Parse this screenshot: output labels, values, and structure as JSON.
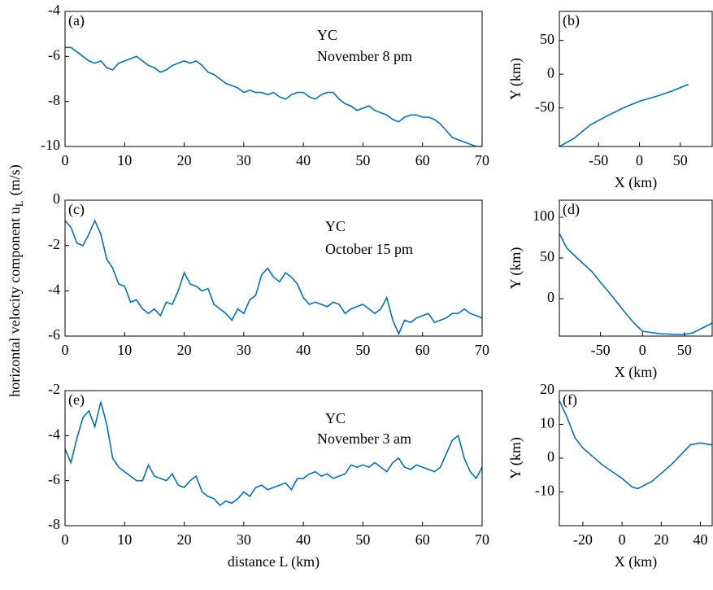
{
  "chart_data": [
    {
      "type": "line",
      "panel_label": "(a)",
      "annotations": [
        "YC",
        "November 8 pm"
      ],
      "x": [
        0,
        1,
        2,
        3,
        4,
        5,
        6,
        7,
        8,
        9,
        10,
        11,
        12,
        13,
        14,
        15,
        16,
        17,
        18,
        19,
        20,
        21,
        22,
        23,
        24,
        25,
        26,
        27,
        28,
        29,
        30,
        31,
        32,
        33,
        34,
        35,
        36,
        37,
        38,
        39,
        40,
        41,
        42,
        43,
        44,
        45,
        46,
        47,
        48,
        49,
        50,
        51,
        52,
        53,
        54,
        55,
        56,
        57,
        58,
        59,
        60,
        61,
        62,
        63,
        64,
        65,
        66,
        67,
        68,
        69,
        70
      ],
      "series": [
        {
          "color": "#0072bd",
          "values": [
            -5.6,
            -5.6,
            -5.8,
            -6.0,
            -6.2,
            -6.3,
            -6.2,
            -6.5,
            -6.6,
            -6.3,
            -6.2,
            -6.1,
            -6.0,
            -6.2,
            -6.4,
            -6.5,
            -6.7,
            -6.6,
            -6.4,
            -6.3,
            -6.2,
            -6.3,
            -6.2,
            -6.4,
            -6.7,
            -6.8,
            -7.0,
            -7.2,
            -7.3,
            -7.4,
            -7.6,
            -7.5,
            -7.6,
            -7.6,
            -7.7,
            -7.6,
            -7.8,
            -7.9,
            -7.7,
            -7.6,
            -7.6,
            -7.8,
            -7.9,
            -7.7,
            -7.6,
            -7.6,
            -7.9,
            -8.1,
            -8.2,
            -8.4,
            -8.3,
            -8.2,
            -8.4,
            -8.5,
            -8.6,
            -8.8,
            -8.9,
            -8.7,
            -8.6,
            -8.6,
            -8.7,
            -8.7,
            -8.8,
            -9.0,
            -9.3,
            -9.6,
            -9.7,
            -9.8,
            -9.9,
            -10.0,
            -10.0
          ]
        }
      ],
      "xlim": [
        0,
        70
      ],
      "xticks": [
        0,
        10,
        20,
        30,
        40,
        50,
        60,
        70
      ],
      "ylim": [
        -10,
        -4
      ],
      "yticks": [
        -10,
        -8,
        -6,
        -4
      ]
    },
    {
      "type": "line",
      "panel_label": "(b)",
      "xlabel": "X (km)",
      "ylabel": "Y (km)",
      "x": [
        -98,
        -80,
        -60,
        -40,
        -20,
        0,
        20,
        40,
        60
      ],
      "series": [
        {
          "color": "#0072bd",
          "values": [
            -107,
            -95,
            -75,
            -62,
            -50,
            -40,
            -33,
            -25,
            -15
          ]
        }
      ],
      "xlim": [
        -98,
        89
      ],
      "xticks": [
        -50,
        0,
        50
      ],
      "ylim": [
        -107,
        93
      ],
      "yticks": [
        -50,
        0,
        50
      ]
    },
    {
      "type": "line",
      "panel_label": "(c)",
      "annotations": [
        "YC",
        "October 15 pm"
      ],
      "ylabel": "horizontal velocity component u",
      "ylabel_subscript": "L",
      "ylabel_unit": "(m/s)",
      "x": [
        0,
        1,
        2,
        3,
        4,
        5,
        6,
        7,
        8,
        9,
        10,
        11,
        12,
        13,
        14,
        15,
        16,
        17,
        18,
        19,
        20,
        21,
        22,
        23,
        24,
        25,
        26,
        27,
        28,
        29,
        30,
        31,
        32,
        33,
        34,
        35,
        36,
        37,
        38,
        39,
        40,
        41,
        42,
        43,
        44,
        45,
        46,
        47,
        48,
        49,
        50,
        51,
        52,
        53,
        54,
        55,
        56,
        57,
        58,
        59,
        60,
        61,
        62,
        63,
        64,
        65,
        66,
        67,
        68,
        69,
        70
      ],
      "series": [
        {
          "color": "#0072bd",
          "values": [
            -0.9,
            -1.2,
            -1.9,
            -2.0,
            -1.5,
            -0.9,
            -1.5,
            -2.6,
            -3.0,
            -3.7,
            -3.8,
            -4.5,
            -4.4,
            -4.8,
            -5.0,
            -4.8,
            -5.1,
            -4.5,
            -4.6,
            -4.0,
            -3.2,
            -3.7,
            -3.8,
            -4.0,
            -3.9,
            -4.6,
            -4.8,
            -5.0,
            -5.3,
            -4.8,
            -5.0,
            -4.4,
            -4.2,
            -3.3,
            -3.0,
            -3.4,
            -3.6,
            -3.2,
            -3.4,
            -3.7,
            -4.3,
            -4.6,
            -4.5,
            -4.6,
            -4.7,
            -4.5,
            -4.6,
            -5.0,
            -4.8,
            -4.7,
            -4.6,
            -4.8,
            -5.0,
            -4.8,
            -4.3,
            -5.3,
            -5.9,
            -5.3,
            -5.4,
            -5.2,
            -5.1,
            -5.0,
            -5.4,
            -5.3,
            -5.2,
            -5.0,
            -5.0,
            -4.8,
            -5.0,
            -5.1,
            -5.2
          ]
        }
      ],
      "xlim": [
        0,
        70
      ],
      "xticks": [
        0,
        10,
        20,
        30,
        40,
        50,
        60,
        70
      ],
      "ylim": [
        -6,
        0
      ],
      "yticks": [
        -6,
        -4,
        -2,
        0
      ]
    },
    {
      "type": "line",
      "panel_label": "(d)",
      "xlabel": "X (km)",
      "ylabel": "Y (km)",
      "x": [
        -99,
        -90,
        -80,
        -60,
        -50,
        -40,
        -20,
        -10,
        0,
        20,
        40,
        50,
        60,
        83
      ],
      "series": [
        {
          "color": "#0072bd",
          "values": [
            80,
            62,
            52,
            33,
            20,
            8,
            -18,
            -30,
            -40,
            -43,
            -44,
            -44,
            -42,
            -30
          ]
        }
      ],
      "xlim": [
        -99,
        83
      ],
      "xticks": [
        -50,
        0,
        50
      ],
      "ylim": [
        -46,
        121
      ],
      "yticks": [
        0,
        50,
        100
      ]
    },
    {
      "type": "line",
      "panel_label": "(e)",
      "annotations": [
        "YC",
        "November 3 am"
      ],
      "xlabel": "distance L (km)",
      "x": [
        0,
        1,
        2,
        3,
        4,
        5,
        6,
        7,
        8,
        9,
        10,
        11,
        12,
        13,
        14,
        15,
        16,
        17,
        18,
        19,
        20,
        21,
        22,
        23,
        24,
        25,
        26,
        27,
        28,
        29,
        30,
        31,
        32,
        33,
        34,
        35,
        36,
        37,
        38,
        39,
        40,
        41,
        42,
        43,
        44,
        45,
        46,
        47,
        48,
        49,
        50,
        51,
        52,
        53,
        54,
        55,
        56,
        57,
        58,
        59,
        60,
        61,
        62,
        63,
        64,
        65,
        66,
        67,
        68,
        69,
        70
      ],
      "series": [
        {
          "color": "#0072bd",
          "values": [
            -4.6,
            -5.2,
            -4.1,
            -3.2,
            -2.9,
            -3.6,
            -2.5,
            -3.5,
            -5.0,
            -5.4,
            -5.6,
            -5.8,
            -6.0,
            -6.0,
            -5.3,
            -5.8,
            -5.9,
            -6.0,
            -5.7,
            -6.2,
            -6.3,
            -6.0,
            -5.8,
            -6.5,
            -6.7,
            -6.8,
            -7.1,
            -6.9,
            -7.0,
            -6.8,
            -6.5,
            -6.7,
            -6.3,
            -6.2,
            -6.4,
            -6.3,
            -6.2,
            -6.1,
            -6.4,
            -5.9,
            -5.9,
            -5.7,
            -5.6,
            -5.8,
            -5.7,
            -5.9,
            -5.8,
            -5.7,
            -5.3,
            -5.4,
            -5.3,
            -5.4,
            -5.2,
            -5.4,
            -5.6,
            -5.2,
            -5.0,
            -5.4,
            -5.5,
            -5.3,
            -5.4,
            -5.5,
            -5.6,
            -5.4,
            -4.8,
            -4.2,
            -4.0,
            -5.0,
            -5.6,
            -5.9,
            -5.4
          ]
        }
      ],
      "xlim": [
        0,
        70
      ],
      "xticks": [
        0,
        10,
        20,
        30,
        40,
        50,
        60,
        70
      ],
      "ylim": [
        -8,
        -2
      ],
      "yticks": [
        -8,
        -6,
        -4,
        -2
      ]
    },
    {
      "type": "line",
      "panel_label": "(f)",
      "xlabel": "X (km)",
      "ylabel": "Y (km)",
      "x": [
        -32,
        -28,
        -24,
        -20,
        -10,
        0,
        5,
        8,
        15,
        25,
        35,
        40,
        45,
        46
      ],
      "series": [
        {
          "color": "#0072bd",
          "values": [
            17,
            12,
            6,
            3,
            -2,
            -6,
            -8.5,
            -9,
            -7,
            -2,
            4,
            4.5,
            4,
            4
          ]
        }
      ],
      "xlim": [
        -32,
        46
      ],
      "xticks": [
        -20,
        0,
        20,
        40
      ],
      "ylim": [
        -20,
        20
      ],
      "yticks": [
        -10,
        0,
        10,
        20
      ]
    }
  ]
}
